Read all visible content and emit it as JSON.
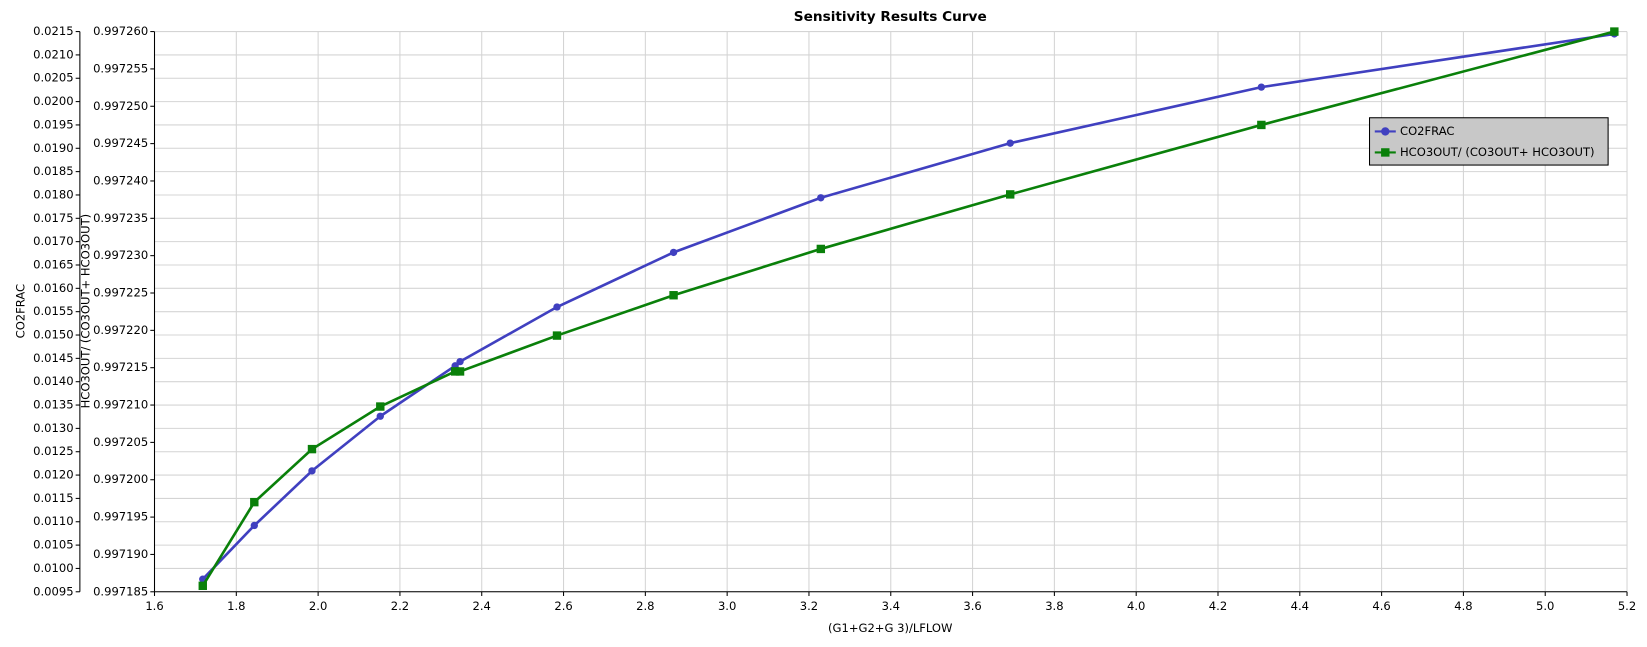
{
  "chart_data": {
    "type": "line",
    "title": "Sensitivity Results Curve",
    "x_label": "(G1+G2+G 3)/LFLOW",
    "y_label": "CO2FRAC",
    "y2_label": "HCO3OUT/ (CO3OUT+ HCO3OUT)",
    "x": [
      1.718,
      1.844,
      1.985,
      2.152,
      2.335,
      2.347,
      2.584,
      2.869,
      3.229,
      3.692,
      4.306,
      5.169
    ],
    "series": [
      {
        "name": "CO2FRAC",
        "color": "#4040c0",
        "marker": "circle",
        "axis": "y",
        "values": [
          0.00977,
          0.01092,
          0.01209,
          0.01326,
          0.01434,
          0.01443,
          0.0156,
          0.01677,
          0.01794,
          0.01911,
          0.02031,
          0.02145
        ]
      },
      {
        "name": "HCO3OUT/ (CO3OUT+ HCO3OUT)",
        "color": "#0a800a",
        "marker": "square",
        "axis": "y2",
        "values": [
          0.9971858,
          0.997197,
          0.9972041,
          0.9972098,
          0.9972145,
          0.9972145,
          0.9972193,
          0.9972247,
          0.9972309,
          0.9972382,
          0.9972475,
          0.99726
        ]
      }
    ],
    "xlim": [
      1.6,
      5.2
    ],
    "xticks": [
      1.6,
      1.8,
      {
        "value": 2,
        "label": "2.0"
      },
      2.2,
      2.4,
      2.6,
      2.8,
      {
        "value": 3,
        "label": "3.0"
      },
      3.2,
      3.4,
      3.6,
      3.8,
      {
        "value": 4,
        "label": "4.0"
      },
      4.2,
      4.4,
      4.6,
      4.8,
      {
        "value": 5,
        "label": "5.0"
      },
      5.2
    ],
    "ylim": [
      0.0095,
      0.0215
    ],
    "yticks": [
      0.0095,
      {
        "value": 0.01,
        "label": "0.0100"
      },
      0.0105,
      {
        "value": 0.011,
        "label": "0.0110"
      },
      0.0115,
      {
        "value": 0.012,
        "label": "0.0120"
      },
      0.0125,
      {
        "value": 0.013,
        "label": "0.0130"
      },
      0.0135,
      {
        "value": 0.014,
        "label": "0.0140"
      },
      0.0145,
      {
        "value": 0.015,
        "label": "0.0150"
      },
      0.0155,
      {
        "value": 0.016,
        "label": "0.0160"
      },
      0.0165,
      {
        "value": 0.017,
        "label": "0.0170"
      },
      0.0175,
      {
        "value": 0.018,
        "label": "0.0180"
      },
      0.0185,
      {
        "value": 0.019,
        "label": "0.0190"
      },
      0.0195,
      {
        "value": 0.02,
        "label": "0.0200"
      },
      0.0205,
      {
        "value": 0.021,
        "label": "0.0210"
      },
      0.0215
    ],
    "y2lim": [
      0.997185,
      0.99726
    ],
    "y2ticks": [
      0.997185,
      {
        "value": 0.99719,
        "label": "0.997190"
      },
      0.997195,
      {
        "value": 0.9972,
        "label": "0.997200"
      },
      0.997205,
      {
        "value": 0.99721,
        "label": "0.997210"
      },
      0.997215,
      {
        "value": 0.99722,
        "label": "0.997220"
      },
      0.997225,
      {
        "value": 0.99723,
        "label": "0.997230"
      },
      0.997235,
      {
        "value": 0.99724,
        "label": "0.997240"
      },
      0.997245,
      {
        "value": 0.99725,
        "label": "0.997250"
      },
      0.997255,
      {
        "value": 0.99726,
        "label": "0.997260"
      }
    ],
    "grid": true,
    "legend": "upper right"
  }
}
